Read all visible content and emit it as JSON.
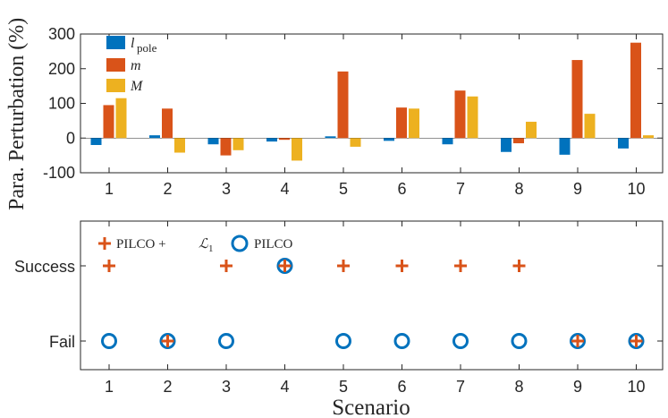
{
  "chart_data": [
    {
      "type": "bar",
      "ylabel": "Para. Perturbation (%)",
      "ylim": [
        -100,
        300
      ],
      "yticks": [
        "-100",
        "0",
        "100",
        "200",
        "300"
      ],
      "categories": [
        "1",
        "2",
        "3",
        "4",
        "5",
        "6",
        "7",
        "8",
        "9",
        "10"
      ],
      "legend_position": "top-left",
      "series": [
        {
          "name": "l_pole",
          "label_main": "l",
          "label_sub": "pole",
          "color": "#0072BD",
          "values": [
            -20,
            8,
            -18,
            -10,
            5,
            -8,
            -18,
            -40,
            -48,
            -30
          ]
        },
        {
          "name": "m",
          "label_main": "m",
          "color": "#D95319",
          "values": [
            95,
            85,
            -50,
            -5,
            192,
            88,
            137,
            -15,
            225,
            275
          ]
        },
        {
          "name": "M",
          "label_main": "M",
          "color": "#EDB120",
          "values": [
            115,
            -42,
            -35,
            -65,
            -25,
            85,
            120,
            47,
            70,
            8
          ]
        }
      ]
    },
    {
      "type": "scatter",
      "xlabel": "Scenario",
      "categories": [
        "1",
        "2",
        "3",
        "4",
        "5",
        "6",
        "7",
        "8",
        "9",
        "10"
      ],
      "ytick_labels": [
        "Success",
        "Fail"
      ],
      "legend_position": "top-left",
      "series": [
        {
          "name": "PILCO + L1",
          "label_text": "PILCO + ",
          "label_math": "ℒ",
          "label_sub": "1",
          "marker": "plus",
          "color": "#D95319",
          "values": [
            "Success",
            "Fail",
            "Success",
            "Success",
            "Success",
            "Success",
            "Success",
            "Success",
            "Fail",
            "Fail"
          ]
        },
        {
          "name": "PILCO",
          "label_text": "PILCO",
          "marker": "circle",
          "color": "#0072BD",
          "values": [
            "Fail",
            "Fail",
            "Fail",
            "Success",
            "Fail",
            "Fail",
            "Fail",
            "Fail",
            "Fail",
            "Fail"
          ]
        }
      ]
    }
  ]
}
